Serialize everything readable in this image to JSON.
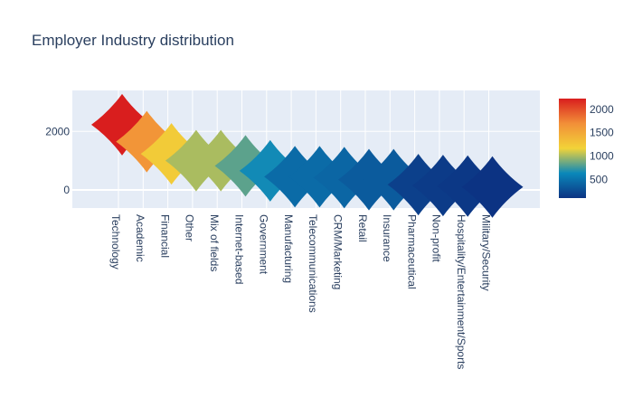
{
  "chart_data": {
    "type": "scatter",
    "title": "Employer Industry distribution",
    "xlabel": "",
    "ylabel": "",
    "categories": [
      "Technology",
      "Academic",
      "Financial",
      "Other",
      "Mix of fields",
      "Internet-based",
      "Government",
      "Manufacturing",
      "Telecommunications",
      "CRM/Marketing",
      "Retail",
      "Insurance",
      "Pharmaceutical",
      "Non-profit",
      "Hospitality/Entertainment/Sports",
      "Military/Security"
    ],
    "values": [
      2230,
      1650,
      1230,
      1000,
      1000,
      820,
      650,
      450,
      450,
      420,
      350,
      350,
      180,
      150,
      130,
      100
    ],
    "marker_symbol": "star-diamond",
    "ylim": [
      -620,
      3400
    ],
    "yticks": [
      0,
      2000
    ],
    "colorbar": {
      "min": 100,
      "max": 2230,
      "ticks": [
        500,
        1000,
        1500,
        2000
      ],
      "colorscale": "Portland",
      "colors": [
        "#0c3383",
        "#0a88ba",
        "#f2d338",
        "#f28f38",
        "#d91e1e"
      ]
    },
    "grid": true,
    "legend": "none"
  }
}
